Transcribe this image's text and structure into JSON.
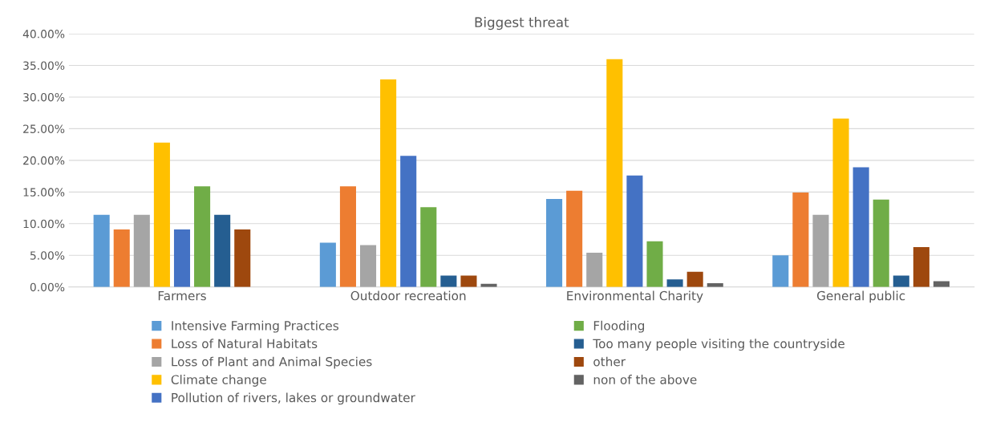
{
  "chart_data": {
    "type": "bar",
    "title": "Biggest threat",
    "categories": [
      "Farmers",
      "Outdoor recreation",
      "Environmental Charity",
      "General public"
    ],
    "series": [
      {
        "name": "Intensive Farming Practices",
        "color": "#5b9bd5",
        "values": [
          11.4,
          7.0,
          13.9,
          5.0
        ]
      },
      {
        "name": "Loss of Natural Habitats",
        "color": "#ed7d31",
        "values": [
          9.1,
          15.9,
          15.2,
          14.9
        ]
      },
      {
        "name": "Loss of Plant and Animal Species",
        "color": "#a5a5a5",
        "values": [
          11.4,
          6.6,
          5.4,
          11.4
        ]
      },
      {
        "name": "Climate change",
        "color": "#ffc000",
        "values": [
          22.8,
          32.8,
          36.0,
          26.6
        ]
      },
      {
        "name": "Pollution of rivers, lakes or groundwater",
        "color": "#4472c4",
        "values": [
          9.1,
          20.7,
          17.6,
          18.9
        ]
      },
      {
        "name": "Flooding",
        "color": "#70ad47",
        "values": [
          15.9,
          12.6,
          7.2,
          13.8
        ]
      },
      {
        "name": "Too many people visiting the countryside",
        "color": "#255e91",
        "values": [
          11.4,
          1.8,
          1.2,
          1.8
        ]
      },
      {
        "name": "other",
        "color": "#9e480e",
        "values": [
          9.1,
          1.8,
          2.4,
          6.3
        ]
      },
      {
        "name": "non of the above",
        "color": "#636363",
        "values": [
          0,
          0.5,
          0.6,
          0.9
        ]
      }
    ],
    "ylim": [
      0,
      40
    ],
    "yticks": [
      {
        "value": 0,
        "label": "0.00%"
      },
      {
        "value": 5,
        "label": "5.00%"
      },
      {
        "value": 10,
        "label": "10.00%"
      },
      {
        "value": 15,
        "label": "15.00%"
      },
      {
        "value": 20,
        "label": "20.00%"
      },
      {
        "value": 25,
        "label": "25.00%"
      },
      {
        "value": 30,
        "label": "30.00%"
      },
      {
        "value": 35,
        "label": "35.00%"
      },
      {
        "value": 40,
        "label": "40.00%"
      }
    ],
    "grid": "y",
    "legend": "bottom"
  }
}
